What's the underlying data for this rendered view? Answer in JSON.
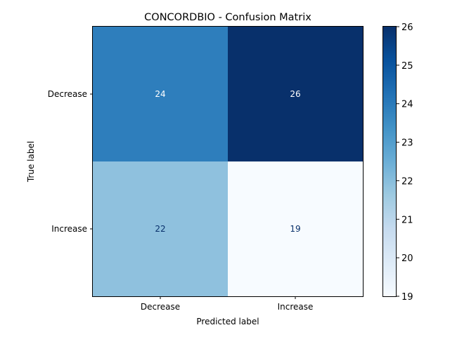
{
  "chart_data": {
    "type": "heatmap",
    "title": "CONCORDBIO - Confusion Matrix",
    "xlabel": "Predicted label",
    "ylabel": "True label",
    "x_categories": [
      "Decrease",
      "Increase"
    ],
    "y_categories": [
      "Decrease",
      "Increase"
    ],
    "values": [
      [
        24,
        26
      ],
      [
        22,
        19
      ]
    ],
    "colormap": "Blues",
    "colorbar": {
      "min": 19,
      "max": 26,
      "ticks": [
        19,
        20,
        21,
        22,
        23,
        24,
        25,
        26
      ]
    },
    "cell_colors": [
      [
        "#2e7ebc",
        "#08306b"
      ],
      [
        "#8fc1de",
        "#f7fbff"
      ]
    ],
    "cell_text_colors": [
      [
        "#ffffff",
        "#ffffff"
      ],
      [
        "#08306b",
        "#08306b"
      ]
    ],
    "colorbar_stops": [
      "#f7fbff",
      "#deebf7",
      "#c6dbef",
      "#9ecae1",
      "#6baed6",
      "#4292c6",
      "#2171b5",
      "#08519c",
      "#08306b"
    ]
  }
}
